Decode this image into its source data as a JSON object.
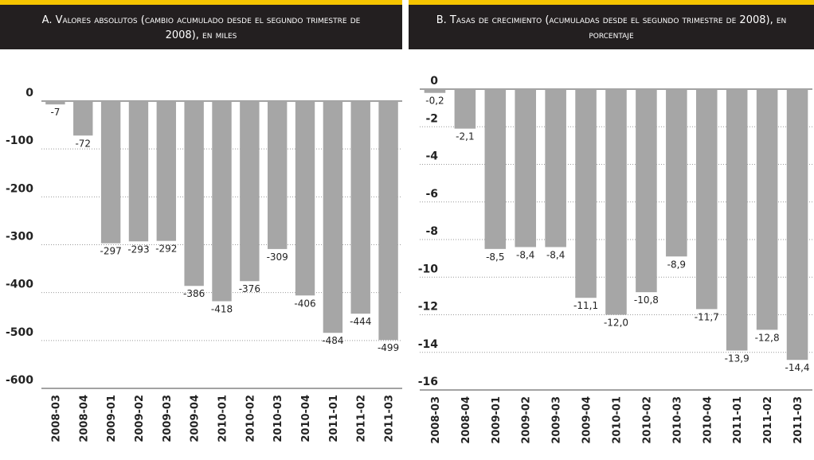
{
  "chart_data": [
    {
      "type": "bar",
      "title": "A. Valores absolutos (cambio acumulado desde el segundo trimestre de 2008), en miles",
      "categories": [
        "2008-03",
        "2008-04",
        "2009-01",
        "2009-02",
        "2009-03",
        "2009-04",
        "2010-01",
        "2010-02",
        "2010-03",
        "2010-04",
        "2011-01",
        "2011-02",
        "2011-03"
      ],
      "values": [
        -7,
        -72,
        -297,
        -293,
        -292,
        -386,
        -418,
        -376,
        -309,
        -406,
        -484,
        -444,
        -499
      ],
      "color": "#a6a6a6",
      "ylim": [
        -600,
        0
      ],
      "yticks": [
        0,
        -100,
        -200,
        -300,
        -400,
        -500,
        -600
      ],
      "grid": true
    },
    {
      "type": "bar",
      "title": "B. Tasas de crecimiento (acumuladas desde el segundo trimestre de 2008), en porcentaje",
      "categories": [
        "2008-03",
        "2008-04",
        "2009-01",
        "2009-02",
        "2009-03",
        "2009-04",
        "2010-01",
        "2010-02",
        "2010-03",
        "2010-04",
        "2011-01",
        "2011-02",
        "2011-03"
      ],
      "values": [
        -0.2,
        -2.1,
        -8.5,
        -8.4,
        -8.4,
        -11.1,
        -12.0,
        -10.8,
        -8.9,
        -11.7,
        -13.9,
        -12.8,
        -14.4
      ],
      "value_labels": [
        "-0,2",
        "-2,1",
        "-8,5",
        "-8,4",
        "-8,4",
        "-11,1",
        "-12,0",
        "-10,8",
        "-8,9",
        "-11,7",
        "-13,9",
        "-12,8",
        "-14,4"
      ],
      "color": "#a6a6a6",
      "ylim": [
        -16,
        0
      ],
      "yticks": [
        0,
        -2,
        -4,
        -6,
        -8,
        -10,
        -12,
        -14,
        -16
      ],
      "grid": true
    }
  ]
}
